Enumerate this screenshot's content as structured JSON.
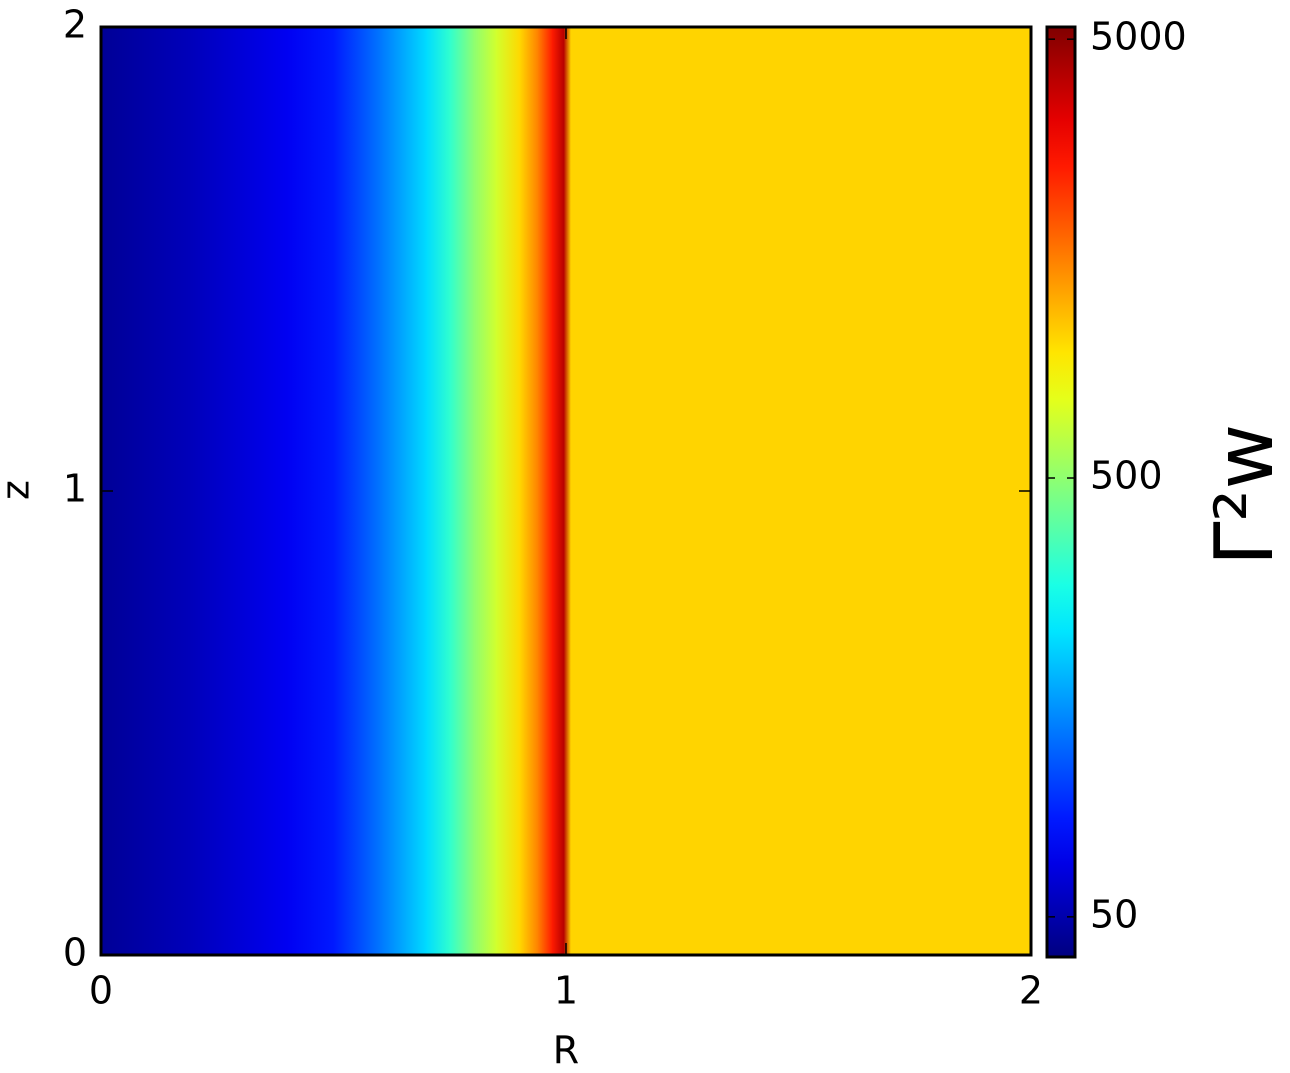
{
  "chart_data": {
    "type": "field",
    "xlabel": "R",
    "ylabel": "z",
    "xlim": [
      0,
      2
    ],
    "ylim": [
      0,
      2
    ],
    "xticks": [
      0,
      1,
      2
    ],
    "yticks": [
      0,
      1,
      2
    ],
    "colormap": "jet",
    "colorbar": {
      "label": "Γ²w",
      "log": true,
      "lim": [
        40.5,
        5330
      ],
      "ticks": [
        50,
        500,
        5000
      ]
    },
    "profile": {
      "R": [
        0,
        0.2,
        0.4,
        0.5,
        0.6,
        0.7,
        0.75,
        0.8,
        0.85,
        0.9,
        0.94,
        0.97,
        0.995,
        1.01,
        2
      ],
      "values": [
        45,
        54,
        70,
        84,
        131,
        214,
        318,
        491,
        690,
        1030,
        1580,
        2550,
        4100,
        1050,
        1050
      ]
    }
  }
}
